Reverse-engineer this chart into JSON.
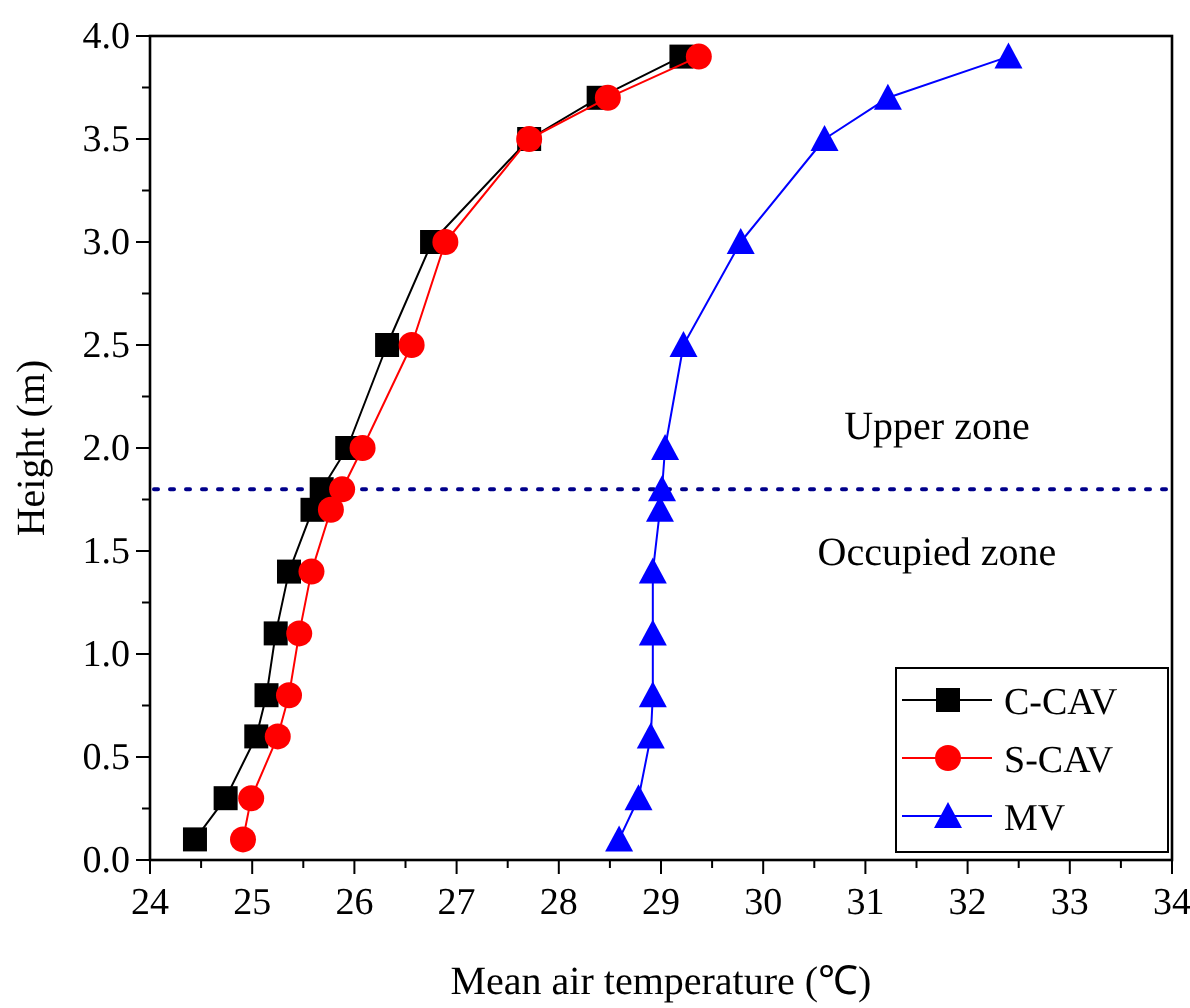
{
  "chart_data": {
    "type": "line",
    "xlabel": "Mean air temperature (℃)",
    "ylabel": "Height (m)",
    "xlim": [
      24,
      34
    ],
    "xticks": [
      24,
      25,
      26,
      27,
      28,
      29,
      30,
      31,
      32,
      33,
      34
    ],
    "ylim": [
      0,
      4
    ],
    "yticks": [
      {
        "value": 0,
        "label": "0.0"
      },
      {
        "value": 0.5,
        "label": "0.5"
      },
      {
        "value": 1,
        "label": "1.0"
      },
      {
        "value": 1.5,
        "label": "1.5"
      },
      {
        "value": 2,
        "label": "2.0"
      },
      {
        "value": 2.5,
        "label": "2.5"
      },
      {
        "value": 3,
        "label": "3.0"
      },
      {
        "value": 3.5,
        "label": "3.5"
      },
      {
        "value": 4,
        "label": "4.0"
      }
    ],
    "series": [
      {
        "name": "C-CAV",
        "color": "#000000",
        "marker": "square",
        "x": [
          24.44,
          24.74,
          25.04,
          25.14,
          25.23,
          25.36,
          25.59,
          25.68,
          25.93,
          26.32,
          26.76,
          27.71,
          28.39,
          29.2
        ],
        "values": [
          0.1,
          0.3,
          0.6,
          0.8,
          1.1,
          1.4,
          1.7,
          1.8,
          2.0,
          2.5,
          3.0,
          3.5,
          3.7,
          3.9
        ]
      },
      {
        "name": "S-CAV",
        "color": "#ff0000",
        "marker": "circle",
        "x": [
          24.91,
          24.99,
          25.25,
          25.36,
          25.46,
          25.58,
          25.77,
          25.88,
          26.08,
          26.56,
          26.89,
          27.71,
          28.48,
          29.37
        ],
        "values": [
          0.1,
          0.3,
          0.6,
          0.8,
          1.1,
          1.4,
          1.7,
          1.8,
          2.0,
          2.5,
          3.0,
          3.5,
          3.7,
          3.9
        ]
      },
      {
        "name": "MV",
        "color": "#0000ff",
        "marker": "triangle",
        "x": [
          28.59,
          28.78,
          28.9,
          28.92,
          28.92,
          28.92,
          28.99,
          29.01,
          29.04,
          29.22,
          29.78,
          30.6,
          31.22,
          32.4
        ],
        "values": [
          0.1,
          0.3,
          0.6,
          0.8,
          1.1,
          1.4,
          1.7,
          1.8,
          2.0,
          2.5,
          3.0,
          3.5,
          3.7,
          3.9
        ]
      }
    ],
    "ref_lines": [
      {
        "axis": "y",
        "value": 1.8,
        "color": "#00008b",
        "line_style": "dotted"
      }
    ],
    "annotations": [
      "Upper zone",
      "Occupied zone"
    ],
    "legend": "bottom right",
    "line_style": "solid",
    "grid": false
  }
}
